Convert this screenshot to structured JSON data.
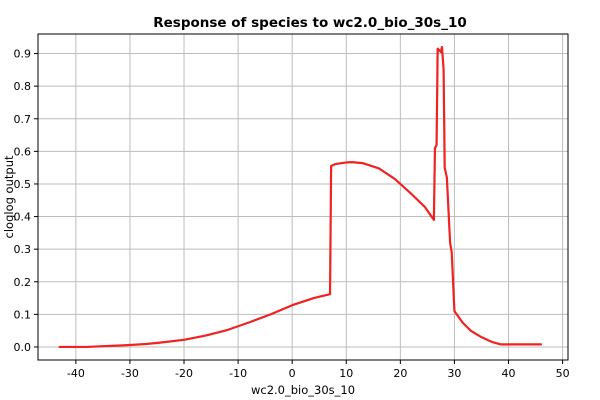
{
  "chart_data": {
    "type": "line",
    "title": "Response of species to wc2.0_bio_30s_10",
    "xlabel": "wc2.0_bio_30s_10",
    "ylabel": "cloglog output",
    "xlim": [
      -47,
      51
    ],
    "ylim": [
      -0.04,
      0.96
    ],
    "xticks": [
      -40,
      -30,
      -20,
      -10,
      0,
      10,
      20,
      30,
      40,
      50
    ],
    "yticks": [
      0.0,
      0.1,
      0.2,
      0.3,
      0.4,
      0.5,
      0.6,
      0.7,
      0.8,
      0.9
    ],
    "ytick_labels": [
      "0.0",
      "0.1",
      "0.2",
      "0.3",
      "0.4",
      "0.5",
      "0.6",
      "0.7",
      "0.8",
      "0.9"
    ],
    "grid": true,
    "series": [
      {
        "color": "#f02222",
        "x": [
          -43,
          -38,
          -34,
          -30,
          -27,
          -24,
          -20,
          -16,
          -12,
          -8,
          -4,
          0,
          4,
          7,
          7.2,
          8,
          10,
          11,
          13,
          16,
          19,
          22,
          24.5,
          26.2,
          26.4,
          26.7,
          26.9,
          27.2,
          27.5,
          27.7,
          28.0,
          28.2,
          28.6,
          28.9,
          29.2,
          29.5,
          30.0,
          31.5,
          33,
          35,
          37,
          38.5,
          42,
          46
        ],
        "y": [
          0.0,
          0.0,
          0.003,
          0.006,
          0.009,
          0.014,
          0.022,
          0.035,
          0.052,
          0.075,
          0.1,
          0.128,
          0.15,
          0.162,
          0.555,
          0.561,
          0.566,
          0.567,
          0.564,
          0.548,
          0.515,
          0.47,
          0.43,
          0.39,
          0.61,
          0.62,
          0.915,
          0.91,
          0.905,
          0.92,
          0.85,
          0.55,
          0.52,
          0.42,
          0.32,
          0.29,
          0.11,
          0.075,
          0.05,
          0.03,
          0.015,
          0.008,
          0.008,
          0.008
        ]
      }
    ]
  }
}
